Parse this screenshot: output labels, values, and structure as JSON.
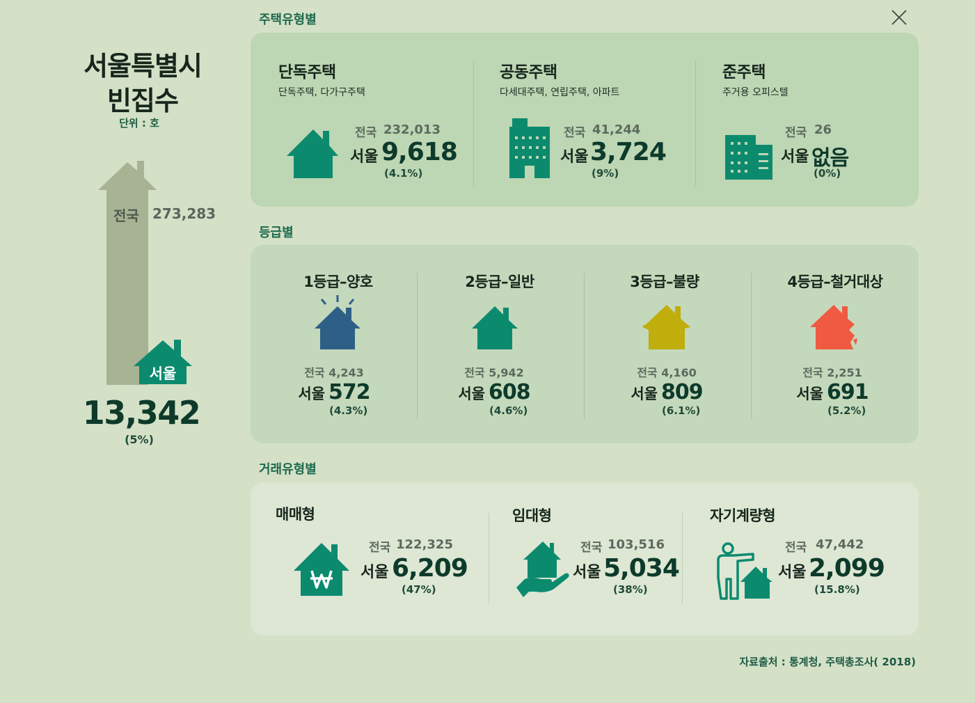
{
  "close_icon": "close-icon",
  "left": {
    "title_line1": "서울특별시",
    "title_line2": "빈집수",
    "unit": "단위 : 호",
    "national_label": "전국",
    "national_value": "273,283",
    "seoul_label": "서울",
    "seoul_value": "13,342",
    "seoul_pct": "(5%)"
  },
  "by_housing_type": {
    "title": "주택유형별",
    "items": [
      {
        "name": "단독주택",
        "sub": "단독주택, 다가구주택",
        "national_label": "전국",
        "national": "232,013",
        "seoul_label": "서울",
        "seoul": "9,618",
        "pct": "(4.1%)",
        "icon": "house-icon"
      },
      {
        "name": "공동주택",
        "sub": "다세대주택, 연립주택, 아파트",
        "national_label": "전국",
        "national": "41,244",
        "seoul_label": "서울",
        "seoul": "3,724",
        "pct": "(9%)",
        "icon": "apartment-building-icon"
      },
      {
        "name": "준주택",
        "sub": "주거용 오피스텔",
        "national_label": "전국",
        "national": "26",
        "seoul_label": "서울",
        "seoul": "없음",
        "pct": "(0%)",
        "icon": "officetel-icon"
      }
    ]
  },
  "by_grade": {
    "title": "등급별",
    "items": [
      {
        "name": "1등급–양호",
        "national": "전국 4,243",
        "seoul_label": "서울",
        "seoul": "572",
        "pct": "(4.3%)",
        "color": "#2e5f87",
        "icon": "house-good-icon"
      },
      {
        "name": "2등급–일반",
        "national": "전국 5,942",
        "seoul_label": "서울",
        "seoul": "608",
        "pct": "(4.6%)",
        "color": "#0c8a6e",
        "icon": "house-normal-icon"
      },
      {
        "name": "3등급–불량",
        "national": "전국 4,160",
        "seoul_label": "서울",
        "seoul": "809",
        "pct": "(6.1%)",
        "color": "#bfae0b",
        "icon": "house-poor-icon"
      },
      {
        "name": "4등급–철거대상",
        "national": "전국 2,251",
        "seoul_label": "서울",
        "seoul": "691",
        "pct": "(5.2%)",
        "color": "#ef5a41",
        "icon": "house-demolition-icon"
      }
    ]
  },
  "by_transaction_type": {
    "title": "거래유형별",
    "items": [
      {
        "name": "매매형",
        "national_label": "전국",
        "national": "122,325",
        "seoul_label": "서울",
        "seoul": "6,209",
        "pct": "(47%)",
        "icon": "house-won-icon"
      },
      {
        "name": "임대형",
        "national_label": "전국",
        "national": "103,516",
        "seoul_label": "서울",
        "seoul": "5,034",
        "pct": "(38%)",
        "icon": "hand-house-icon"
      },
      {
        "name": "자기계량형",
        "national_label": "전국",
        "national": "47,442",
        "seoul_label": "서울",
        "seoul": "2,099",
        "pct": "(15.8%)",
        "icon": "person-house-icon"
      }
    ]
  },
  "source": "자료출처 : 통계청, 주택총조사( 2018)",
  "colors": {
    "accent": "#0c8a6e",
    "background": "#d4e1c7",
    "dark_text": "#0d3a2b"
  }
}
